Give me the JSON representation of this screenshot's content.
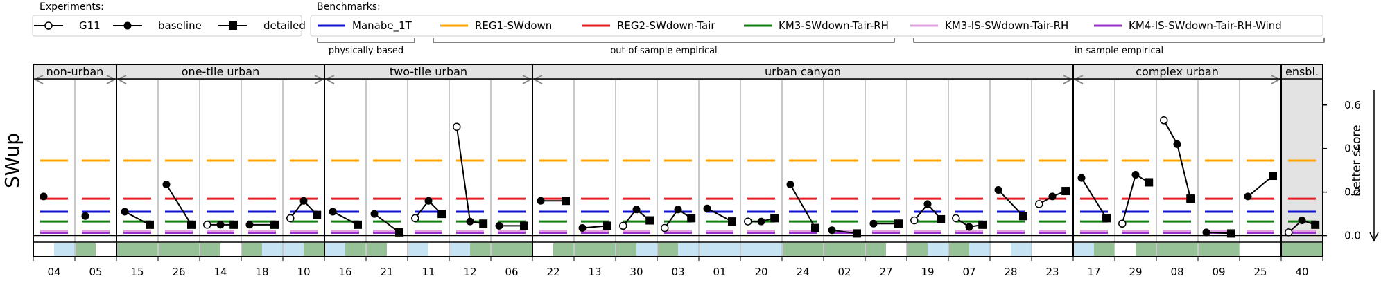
{
  "legend": {
    "experiments": {
      "title": "Experiments:",
      "items": [
        {
          "label": "G11",
          "marker": "open-circle"
        },
        {
          "label": "baseline",
          "marker": "filled-circle"
        },
        {
          "label": "detailed",
          "marker": "filled-square"
        }
      ]
    },
    "benchmarks": {
      "title": "Benchmarks:",
      "items": [
        {
          "label": "Manabe_1T",
          "color": "#1010d0"
        },
        {
          "label": "REG1-SWdown",
          "color": "#ffa500"
        },
        {
          "label": "REG2-SWdown-Tair",
          "color": "#e81c1c"
        },
        {
          "label": "KM3-SWdown-Tair-RH",
          "color": "#108010"
        },
        {
          "label": "KM3-IS-SWdown-Tair-RH",
          "color": "#e0a0e0"
        },
        {
          "label": "KM4-IS-SWdown-Tair-RH-Wind",
          "color": "#9932cc"
        }
      ],
      "groups": [
        {
          "label": "physically-based",
          "from": 0,
          "to": 0
        },
        {
          "label": "out-of-sample empirical",
          "from": 1,
          "to": 3
        },
        {
          "label": "in-sample empirical",
          "from": 4,
          "to": 5
        }
      ]
    }
  },
  "chart_data": {
    "type": "line",
    "ylabel": "SWup",
    "y2label": "better score",
    "ylim": [
      -0.03,
      0.72
    ],
    "yticks": [
      0.0,
      0.2,
      0.4,
      0.6
    ],
    "categories": [
      "04",
      "05",
      "15",
      "26",
      "14",
      "18",
      "10",
      "16",
      "21",
      "11",
      "12",
      "06",
      "22",
      "13",
      "30",
      "03",
      "01",
      "20",
      "24",
      "02",
      "27",
      "19",
      "07",
      "28",
      "23",
      "17",
      "29",
      "08",
      "09",
      "25",
      "40"
    ],
    "groups": [
      {
        "label": "non-urban",
        "from": 0,
        "to": 1
      },
      {
        "label": "one-tile urban",
        "from": 2,
        "to": 6
      },
      {
        "label": "two-tile urban",
        "from": 7,
        "to": 11
      },
      {
        "label": "urban canyon",
        "from": 12,
        "to": 24
      },
      {
        "label": "complex urban",
        "from": 25,
        "to": 29
      },
      {
        "label": "ensbl.",
        "from": 30,
        "to": 30
      }
    ],
    "benchmarks": [
      {
        "name": "Manabe_1T",
        "value": 0.11
      },
      {
        "name": "REG1-SWdown",
        "value": 0.345
      },
      {
        "name": "REG2-SWdown-Tair",
        "value": 0.17
      },
      {
        "name": "KM3-SWdown-Tair-RH",
        "value": 0.065
      },
      {
        "name": "KM3-IS-SWdown-Tair-RH",
        "value": 0.022
      },
      {
        "name": "KM4-IS-SWdown-Tair-RH-Wind",
        "value": 0.013
      }
    ],
    "series": [
      {
        "name": "G11",
        "values": [
          null,
          null,
          null,
          null,
          0.05,
          null,
          0.08,
          null,
          null,
          0.08,
          0.5,
          null,
          null,
          null,
          0.045,
          0.035,
          null,
          0.065,
          null,
          null,
          null,
          0.07,
          0.08,
          null,
          0.145,
          null,
          0.055,
          0.53,
          null,
          null,
          0.015
        ]
      },
      {
        "name": "baseline",
        "values": [
          0.18,
          0.09,
          0.11,
          0.235,
          0.05,
          0.05,
          0.16,
          0.11,
          0.1,
          0.16,
          0.065,
          0.045,
          0.16,
          0.035,
          0.12,
          0.12,
          0.125,
          0.065,
          0.235,
          0.025,
          0.055,
          0.145,
          0.04,
          0.21,
          0.18,
          0.265,
          0.28,
          0.42,
          0.015,
          0.18,
          0.07
        ]
      },
      {
        "name": "detailed",
        "values": [
          null,
          null,
          0.05,
          0.05,
          0.05,
          0.05,
          0.095,
          0.05,
          0.015,
          0.1,
          0.055,
          0.045,
          0.16,
          0.045,
          0.07,
          0.08,
          0.065,
          0.08,
          0.035,
          0.01,
          0.055,
          0.075,
          0.05,
          0.09,
          0.205,
          0.08,
          0.245,
          0.17,
          0.01,
          0.275,
          0.05
        ]
      }
    ],
    "strip": [
      [
        null,
        "blue"
      ],
      [
        "green",
        null
      ],
      [
        "green",
        "green"
      ],
      [
        "green",
        "green"
      ],
      [
        "green",
        null
      ],
      [
        "green",
        "blue"
      ],
      [
        "blue",
        "green"
      ],
      [
        "blue",
        "green"
      ],
      [
        "green",
        null
      ],
      [
        "blue",
        null
      ],
      [
        "blue",
        "green"
      ],
      [
        "green",
        "green"
      ],
      [
        null,
        "green"
      ],
      [
        "green",
        "green"
      ],
      [
        "green",
        "blue"
      ],
      [
        "green",
        "blue"
      ],
      [
        "blue",
        "blue"
      ],
      [
        "blue",
        "blue"
      ],
      [
        "green",
        "green"
      ],
      [
        "green",
        "green"
      ],
      [
        "green",
        null
      ],
      [
        "green",
        "blue"
      ],
      [
        "green",
        "blue"
      ],
      [
        null,
        "blue"
      ],
      [
        null,
        null
      ],
      [
        "blue",
        "green"
      ],
      [
        null,
        "green"
      ],
      [
        "green",
        "green"
      ],
      [
        "green",
        "green"
      ],
      [
        null,
        null
      ],
      [
        "green",
        "green"
      ]
    ]
  }
}
